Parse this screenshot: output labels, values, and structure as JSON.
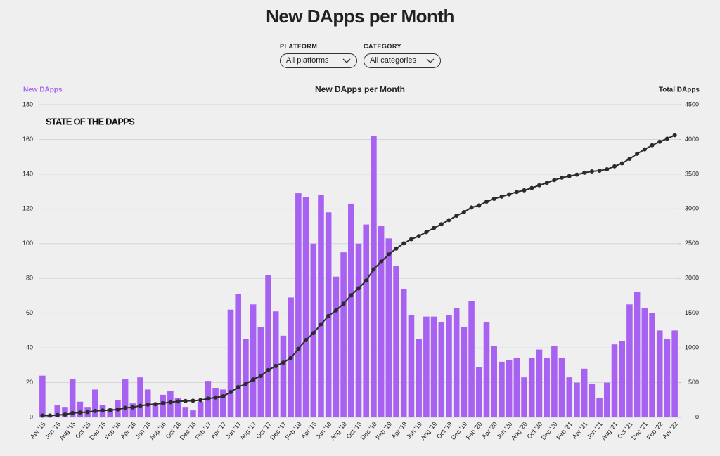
{
  "page_title": "New DApps per Month",
  "filters": [
    {
      "label": "PLATFORM",
      "value": "All platforms"
    },
    {
      "label": "CATEGORY",
      "value": "All categories"
    }
  ],
  "chart_data": {
    "type": "bar_line",
    "title": "New DApps per Month",
    "logo": "STATE OF THE DAPPS",
    "categories": [
      "Apr '15",
      null,
      "Jun '15",
      null,
      "Aug '15",
      null,
      "Oct '15",
      null,
      "Dec '15",
      null,
      "Feb '16",
      null,
      "Apr '16",
      null,
      "Jun '16",
      null,
      "Aug '16",
      null,
      "Oct '16",
      null,
      "Dec '16",
      null,
      "Feb '17",
      null,
      "Apr '17",
      null,
      "Jun '17",
      null,
      "Aug '17",
      null,
      "Oct '17",
      null,
      "Dec '17",
      null,
      "Feb '18",
      null,
      "Apr '18",
      null,
      "Jun '18",
      null,
      "Aug '18",
      null,
      "Oct '18",
      null,
      "Dec '18",
      null,
      "Feb '19",
      null,
      "Apr '19",
      null,
      "Jun '19",
      null,
      "Aug '19",
      null,
      "Oct '19",
      null,
      "Dec '19",
      null,
      "Feb '20",
      null,
      "Apr '20",
      null,
      "Jun '20",
      null,
      "Aug '20",
      null,
      "Oct '20",
      null,
      "Dec '20",
      null,
      "Feb '21",
      null,
      "Apr '21",
      null,
      "Jun '21",
      null,
      "Aug '21",
      null,
      "Oct '21",
      null,
      "Dec '21",
      null,
      "Feb '22",
      null,
      "Apr '22"
    ],
    "series": [
      {
        "name": "New DApps",
        "color": "#a862f2",
        "kind": "bar",
        "values": [
          24,
          1,
          7,
          6,
          22,
          9,
          6,
          16,
          7,
          5,
          10,
          22,
          8,
          23,
          16,
          7,
          13,
          15,
          11,
          6,
          4,
          9,
          21,
          17,
          16,
          62,
          71,
          45,
          65,
          52,
          82,
          61,
          47,
          69,
          129,
          127,
          100,
          128,
          118,
          81,
          95,
          123,
          100,
          111,
          162,
          110,
          103,
          87,
          74,
          59,
          45,
          58,
          58,
          55,
          59,
          63,
          52,
          67,
          29,
          55,
          41,
          32,
          33,
          34,
          23,
          34,
          39,
          34,
          41,
          34,
          23,
          20,
          28,
          19,
          11,
          20,
          42,
          44,
          65,
          72,
          63,
          60,
          50,
          45,
          50
        ]
      },
      {
        "name": "Total DApps",
        "color": "#2b2b2b",
        "kind": "line",
        "axis": "y2",
        "values": [
          25,
          27,
          34,
          40,
          62,
          70,
          76,
          92,
          99,
          104,
          114,
          136,
          144,
          167,
          183,
          190,
          203,
          218,
          229,
          235,
          239,
          248,
          269,
          286,
          302,
          364,
          435,
          480,
          545,
          597,
          679,
          740,
          787,
          856,
          985,
          1112,
          1212,
          1340,
          1458,
          1539,
          1634,
          1757,
          1857,
          1968,
          2130,
          2240,
          2343,
          2430,
          2504,
          2563,
          2608,
          2666,
          2724,
          2779,
          2838,
          2901,
          2953,
          3020,
          3049,
          3104,
          3145,
          3177,
          3210,
          3244,
          3267,
          3301,
          3340,
          3374,
          3415,
          3449,
          3472,
          3492,
          3520,
          3539,
          3550,
          3570,
          3612,
          3656,
          3721,
          3793,
          3856,
          3916,
          3966,
          4011,
          4061
        ]
      }
    ],
    "ylim": [
      0,
      180
    ],
    "yticks": [
      0,
      20,
      40,
      60,
      80,
      100,
      120,
      140,
      160,
      180
    ],
    "y2lim": [
      0,
      4500
    ],
    "y2ticks": [
      0,
      500,
      1000,
      1500,
      2000,
      2500,
      3000,
      3500,
      4000,
      4500
    ],
    "grid": true
  }
}
